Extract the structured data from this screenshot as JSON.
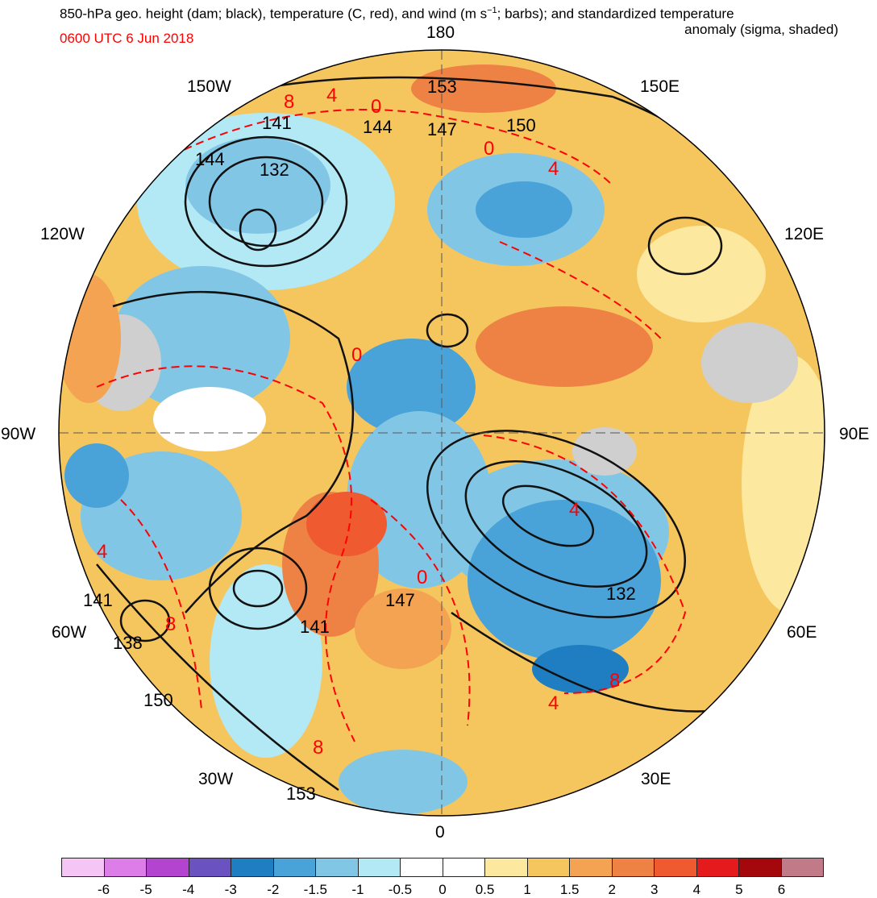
{
  "title_line1": "850-hPa geo. height (dam; black), temperature (C, red), and wind (m s",
  "title_sup": "−1",
  "title_line1_end": "; barbs); and standardized temperature",
  "title_line2": "anomaly (sigma, shaded)",
  "valid_time": "0600 UTC 6 Jun 2018",
  "longitude_labels": {
    "n180": "180",
    "w150": "150W",
    "e150": "150E",
    "w120": "120W",
    "e120": "120E",
    "w90": "90W",
    "e90": "90E",
    "w60": "60W",
    "e60": "60E",
    "w30": "30W",
    "e30": "30E",
    "s0": "0"
  },
  "height_labels": [
    "153",
    "141",
    "144",
    "147",
    "150",
    "144",
    "132",
    "141",
    "138",
    "150",
    "147",
    "141",
    "153",
    "132"
  ],
  "temp_labels": [
    "8",
    "4",
    "0",
    "0",
    "4",
    "0",
    "4",
    "8",
    "4",
    "0",
    "8",
    "4",
    "8"
  ],
  "colorbar": {
    "colors": [
      "#f5c6f5",
      "#dd7ee8",
      "#b344d0",
      "#6a52c0",
      "#1f7dc1",
      "#4aa3d8",
      "#82c6e6",
      "#b3e8f5",
      "#ffffff",
      "#ffffff",
      "#fde8a0",
      "#f6c65e",
      "#f3a352",
      "#ee8245",
      "#f05a30",
      "#e41a1c",
      "#a5080c",
      "#c07a88"
    ],
    "ticks": [
      "-6",
      "-5",
      "-4",
      "-3",
      "-2",
      "-1.5",
      "-1",
      "-0.5",
      "0",
      "0.5",
      "1",
      "1.5",
      "2",
      "3",
      "4",
      "5",
      "6"
    ]
  }
}
